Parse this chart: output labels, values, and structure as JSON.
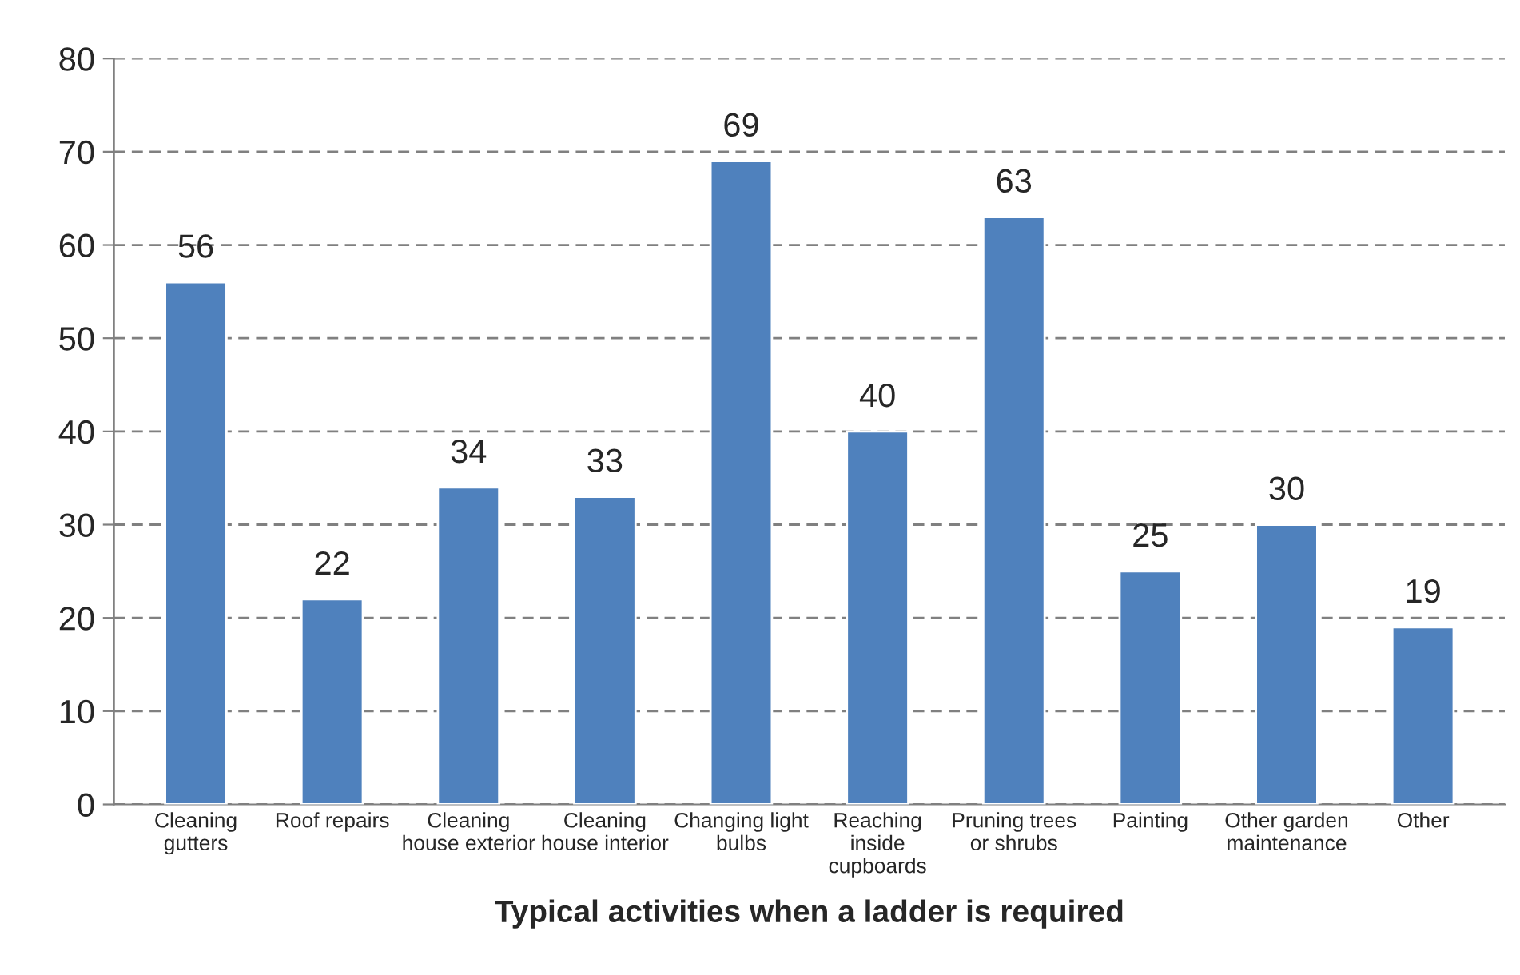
{
  "chart_data": {
    "type": "bar",
    "xlabel": "Typical activities when a ladder is required",
    "categories": [
      "Cleaning\ngutters",
      "Roof repairs",
      "Cleaning\nhouse exterior",
      "Cleaning\nhouse interior",
      "Changing light\nbulbs",
      "Reaching\ninside\ncupboards",
      "Pruning trees\nor shrubs",
      "Painting",
      "Other garden\nmaintenance",
      "Other"
    ],
    "values": [
      56,
      22,
      34,
      33,
      69,
      40,
      63,
      25,
      30,
      19
    ],
    "color": "#4f81bd",
    "ylim": [
      0,
      80
    ],
    "yticks": [
      0,
      10,
      20,
      30,
      40,
      50,
      60,
      70,
      80
    ],
    "grid": "y",
    "data_labels": true
  }
}
